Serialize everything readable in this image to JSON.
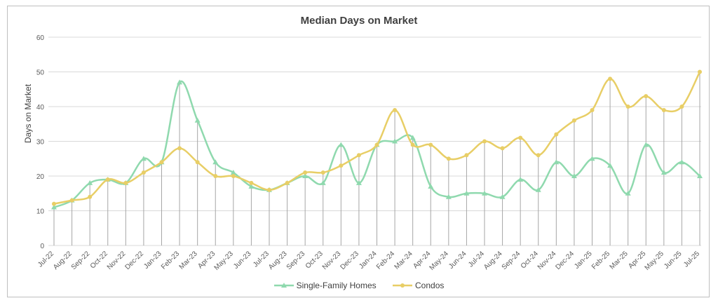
{
  "chart_data": {
    "type": "line",
    "title": "Median Days on Market",
    "ylabel": "Days on Market",
    "ylim": [
      0,
      60
    ],
    "yticks": [
      0,
      10,
      20,
      30,
      40,
      50,
      60
    ],
    "grid": true,
    "legend_position": "bottom",
    "categories": [
      "Jul-22",
      "Aug-22",
      "Sep-22",
      "Oct-22",
      "Nov-22",
      "Dec-22",
      "Jan-23",
      "Feb-23",
      "Mar-23",
      "Apr-23",
      "May-23",
      "Jun-23",
      "Jul-23",
      "Aug-23",
      "Sep-23",
      "Oct-23",
      "Nov-23",
      "Dec-23",
      "Jan-24",
      "Feb-24",
      "Mar-24",
      "Apr-24",
      "May-24",
      "Jun-24",
      "Jul-24",
      "Aug-24",
      "Sep-24",
      "Oct-24",
      "Nov-24",
      "Dec-24",
      "Jan-25",
      "Feb-25",
      "Mar-25",
      "Apr-25",
      "May-25",
      "Jun-25",
      "Jul-25"
    ],
    "series": [
      {
        "name": "Single-Family Homes",
        "color": "#8fd9ae",
        "marker": "triangle",
        "values": [
          11,
          13,
          18,
          19,
          18,
          25,
          24,
          47,
          36,
          24,
          21,
          17,
          16,
          18,
          20,
          18,
          29,
          18,
          29,
          30,
          31,
          17,
          14,
          15,
          15,
          14,
          19,
          16,
          24,
          20,
          25,
          23,
          15,
          29,
          21,
          24,
          20
        ]
      },
      {
        "name": "Condos",
        "color": "#e8ce66",
        "marker": "circle",
        "values": [
          12,
          13,
          14,
          19,
          18,
          21,
          24,
          28,
          24,
          20,
          20,
          18,
          16,
          18,
          21,
          21,
          23,
          26,
          29,
          39,
          29,
          29,
          25,
          26,
          30,
          28,
          31,
          26,
          32,
          36,
          39,
          48,
          40,
          43,
          39,
          40,
          50
        ]
      }
    ]
  }
}
